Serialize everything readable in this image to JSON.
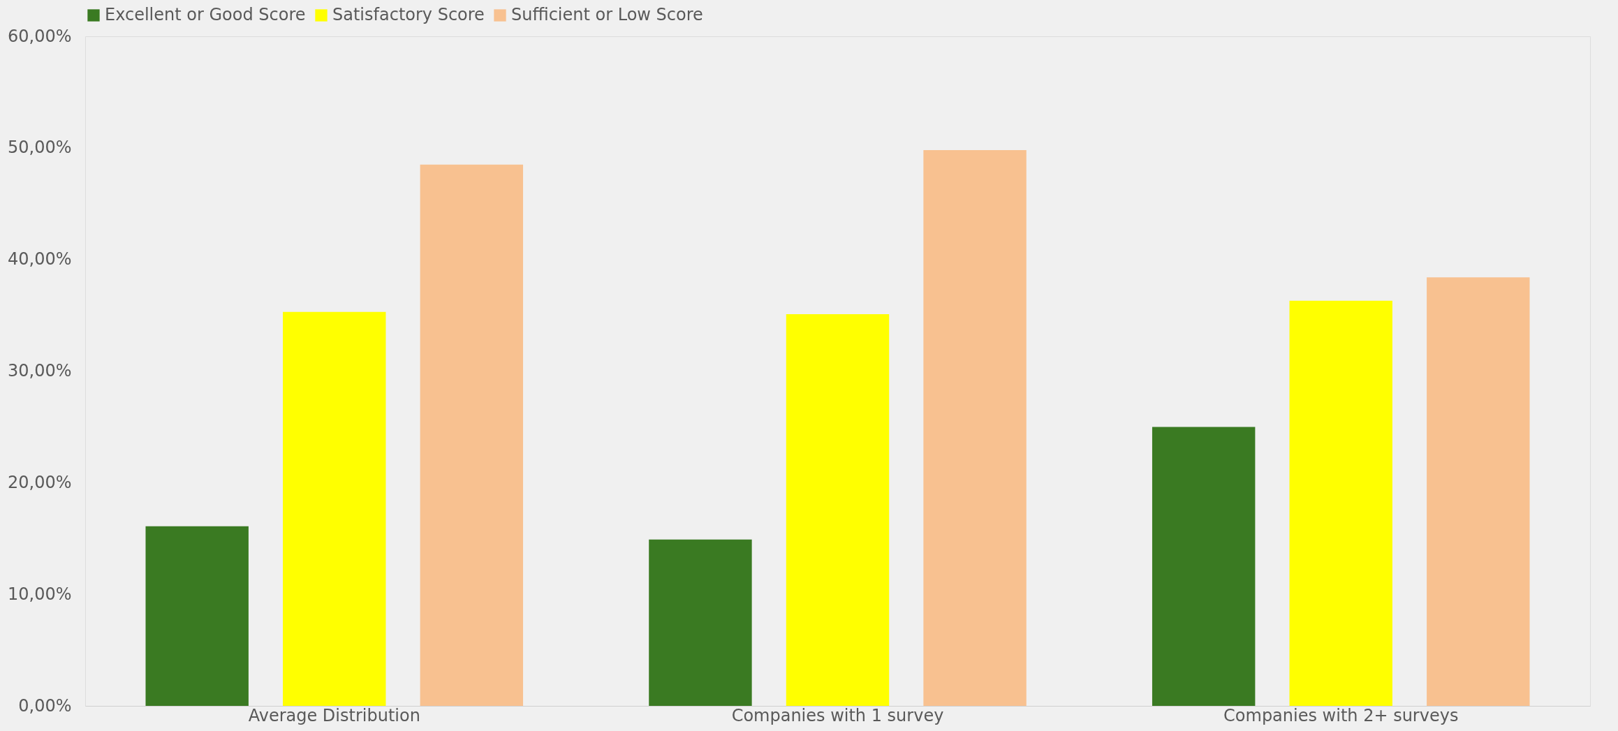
{
  "chart_data": {
    "type": "bar",
    "categories": [
      "Average Distribution",
      "Companies with 1 survey",
      "Companies with 2+ surveys"
    ],
    "series": [
      {
        "name": "Excellent or Good Score",
        "color": "#3a7a22",
        "values": [
          16.1,
          14.9,
          25.0
        ]
      },
      {
        "name": "Satisfactory Score",
        "color": "#ffff00",
        "values": [
          35.3,
          35.1,
          36.3
        ]
      },
      {
        "name": "Sufficient or Low Score",
        "color": "#f8c190",
        "values": [
          48.5,
          49.8,
          38.4
        ]
      }
    ],
    "ylim": [
      0,
      60
    ],
    "yticks": [
      {
        "value": 0,
        "label": "0,00%"
      },
      {
        "value": 10,
        "label": "10,00%"
      },
      {
        "value": 20,
        "label": "20,00%"
      },
      {
        "value": 30,
        "label": "30,00%"
      },
      {
        "value": 40,
        "label": "40,00%"
      },
      {
        "value": 50,
        "label": "50,00%"
      },
      {
        "value": 60,
        "label": "60,00%"
      }
    ],
    "grid": false,
    "legend": "top"
  }
}
